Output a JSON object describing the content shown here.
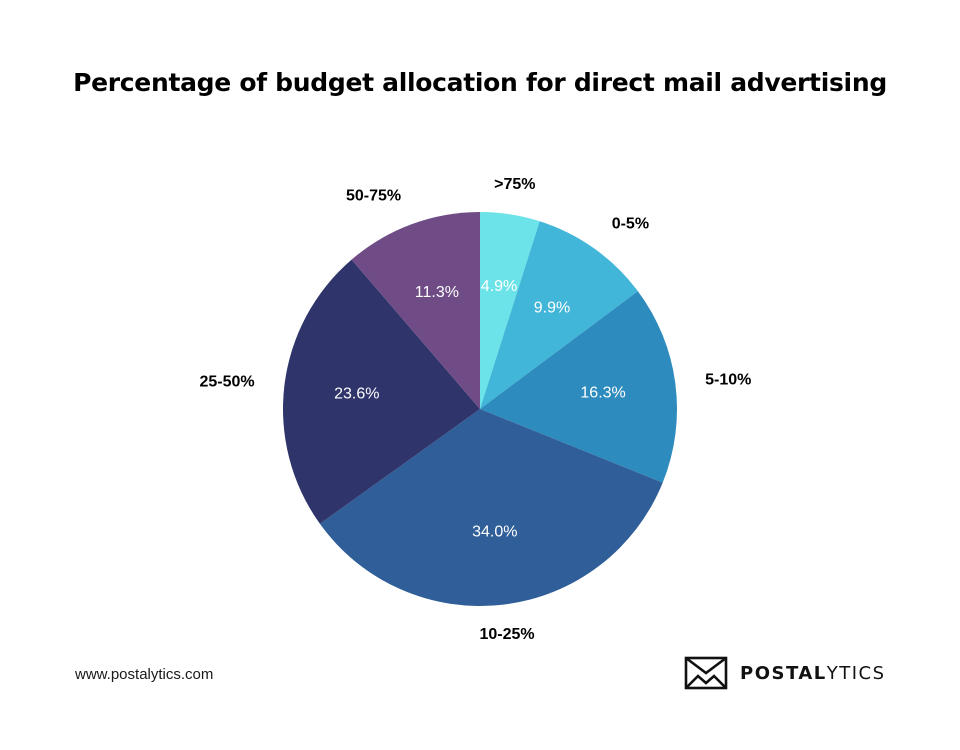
{
  "chart_data": {
    "type": "pie",
    "title": "Percentage of budget allocation for direct mail advertising",
    "slices": [
      {
        "label": ">75%",
        "value": 4.9,
        "value_label": "4.9%",
        "color": "#6be3e8"
      },
      {
        "label": "0-5%",
        "value": 9.9,
        "value_label": "9.9%",
        "color": "#42b6d8"
      },
      {
        "label": "5-10%",
        "value": 16.3,
        "value_label": "16.3%",
        "color": "#2e8bbd"
      },
      {
        "label": "10-25%",
        "value": 34.0,
        "value_label": "34.0%",
        "color": "#2f5e98"
      },
      {
        "label": "25-50%",
        "value": 23.6,
        "value_label": "23.6%",
        "color": "#2f346b"
      },
      {
        "label": "50-75%",
        "value": 11.3,
        "value_label": "11.3%",
        "color": "#6f4c85"
      }
    ],
    "start": "12 o'clock",
    "direction": "clockwise"
  },
  "footer": {
    "website": "www.postalytics.com",
    "brand_bold": "POSTAL",
    "brand_light": "YTICS",
    "logo_icon": "envelope-chart-icon"
  }
}
